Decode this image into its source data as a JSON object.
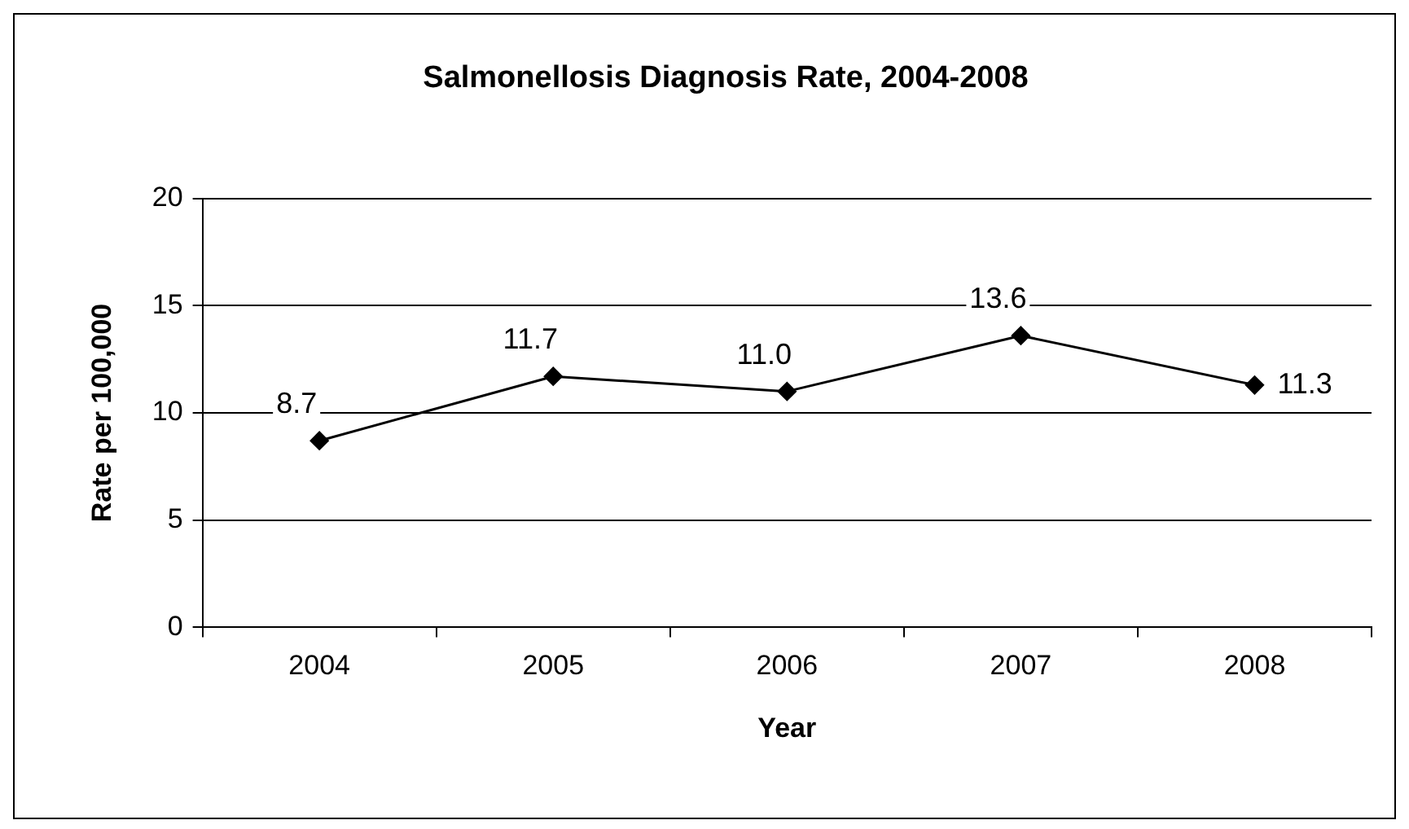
{
  "chart_data": {
    "type": "line",
    "title": "Salmonellosis Diagnosis Rate, 2004-2008",
    "xlabel": "Year",
    "ylabel": "Rate per 100,000",
    "categories": [
      "2004",
      "2005",
      "2006",
      "2007",
      "2008"
    ],
    "series": [
      {
        "color": "#000000",
        "values": [
          8.7,
          11.7,
          11.0,
          13.6,
          11.3
        ],
        "value_labels": [
          "8.7",
          "11.7",
          "11.0",
          "13.6",
          "11.3"
        ]
      }
    ],
    "ylim": [
      0,
      20
    ],
    "yticks": [
      0,
      5,
      10,
      15,
      20
    ],
    "grid": "y",
    "legend": false,
    "marker": "diamond",
    "line_style": "solid"
  }
}
